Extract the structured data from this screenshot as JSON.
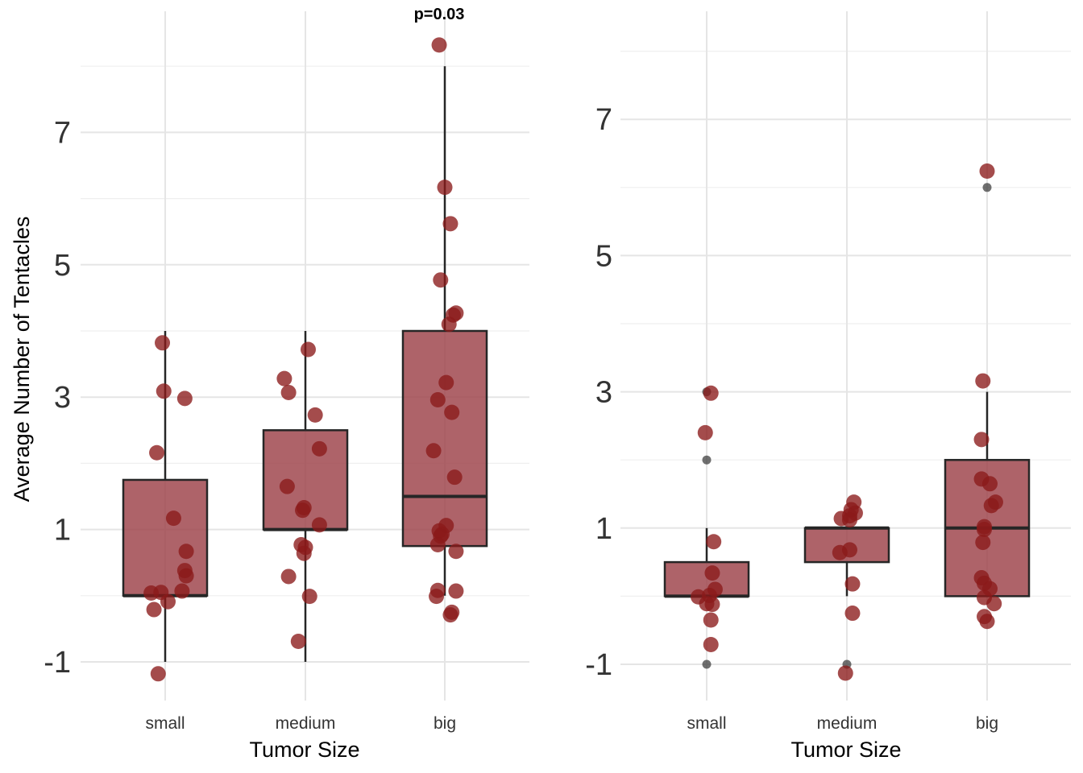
{
  "colors": {
    "box_fill": "#a0484f",
    "point_fill": "#8b1a1a",
    "outlier": "#333333",
    "grid": "#e5e5e5"
  },
  "chart_data": [
    {
      "type": "box",
      "title": "",
      "xlabel": "Tumor Size",
      "ylabel": "Average Number of Tentacles",
      "categories": [
        "small",
        "medium",
        "big"
      ],
      "ylim": [
        -1.6,
        8.8
      ],
      "yticks": [
        -1,
        1,
        3,
        5,
        7
      ],
      "yticklabels": [
        "-1",
        "1",
        "3",
        "5",
        "7"
      ],
      "annotation": "p=0.03",
      "grid": true,
      "boxes": [
        {
          "category": "small",
          "min": -1,
          "q1": 0,
          "median": 0,
          "q3": 1.75,
          "max": 4
        },
        {
          "category": "medium",
          "min": -1,
          "q1": 1,
          "median": 1,
          "q3": 2.5,
          "max": 4
        },
        {
          "category": "big",
          "min": 0,
          "q1": 0.75,
          "median": 1.5,
          "q3": 4,
          "max": 8
        }
      ],
      "outliers": [],
      "points": [
        {
          "category": "small",
          "jitter": -0.02,
          "y": 3.82
        },
        {
          "category": "small",
          "jitter": -0.01,
          "y": 3.09
        },
        {
          "category": "small",
          "jitter": 0.14,
          "y": 2.98
        },
        {
          "category": "small",
          "jitter": -0.06,
          "y": 2.16
        },
        {
          "category": "small",
          "jitter": 0.06,
          "y": 1.17
        },
        {
          "category": "small",
          "jitter": 0.15,
          "y": 0.67
        },
        {
          "category": "small",
          "jitter": 0.14,
          "y": 0.38
        },
        {
          "category": "small",
          "jitter": 0.15,
          "y": 0.3
        },
        {
          "category": "small",
          "jitter": -0.1,
          "y": 0.04
        },
        {
          "category": "small",
          "jitter": -0.03,
          "y": 0.05
        },
        {
          "category": "small",
          "jitter": 0.12,
          "y": 0.07
        },
        {
          "category": "small",
          "jitter": 0.02,
          "y": -0.09
        },
        {
          "category": "small",
          "jitter": -0.08,
          "y": -0.21
        },
        {
          "category": "small",
          "jitter": -0.05,
          "y": -1.18
        },
        {
          "category": "medium",
          "jitter": 0.02,
          "y": 3.72
        },
        {
          "category": "medium",
          "jitter": -0.15,
          "y": 3.28
        },
        {
          "category": "medium",
          "jitter": -0.12,
          "y": 3.07
        },
        {
          "category": "medium",
          "jitter": 0.07,
          "y": 2.73
        },
        {
          "category": "medium",
          "jitter": 0.1,
          "y": 2.22
        },
        {
          "category": "medium",
          "jitter": -0.13,
          "y": 1.65
        },
        {
          "category": "medium",
          "jitter": -0.01,
          "y": 1.33
        },
        {
          "category": "medium",
          "jitter": -0.02,
          "y": 1.29
        },
        {
          "category": "medium",
          "jitter": 0.1,
          "y": 1.07
        },
        {
          "category": "medium",
          "jitter": -0.03,
          "y": 0.77
        },
        {
          "category": "medium",
          "jitter": 0.0,
          "y": 0.73
        },
        {
          "category": "medium",
          "jitter": -0.01,
          "y": 0.64
        },
        {
          "category": "medium",
          "jitter": -0.12,
          "y": 0.29
        },
        {
          "category": "medium",
          "jitter": 0.03,
          "y": -0.01
        },
        {
          "category": "medium",
          "jitter": -0.05,
          "y": -0.69
        },
        {
          "category": "big",
          "jitter": -0.04,
          "y": 8.32
        },
        {
          "category": "big",
          "jitter": 0.0,
          "y": 6.17
        },
        {
          "category": "big",
          "jitter": 0.04,
          "y": 5.62
        },
        {
          "category": "big",
          "jitter": -0.03,
          "y": 4.77
        },
        {
          "category": "big",
          "jitter": 0.08,
          "y": 4.27
        },
        {
          "category": "big",
          "jitter": 0.06,
          "y": 4.24
        },
        {
          "category": "big",
          "jitter": 0.03,
          "y": 4.1
        },
        {
          "category": "big",
          "jitter": 0.01,
          "y": 3.22
        },
        {
          "category": "big",
          "jitter": -0.05,
          "y": 2.96
        },
        {
          "category": "big",
          "jitter": 0.05,
          "y": 2.77
        },
        {
          "category": "big",
          "jitter": -0.08,
          "y": 2.19
        },
        {
          "category": "big",
          "jitter": 0.07,
          "y": 1.79
        },
        {
          "category": "big",
          "jitter": 0.01,
          "y": 1.06
        },
        {
          "category": "big",
          "jitter": -0.04,
          "y": 0.98
        },
        {
          "category": "big",
          "jitter": -0.02,
          "y": 0.93
        },
        {
          "category": "big",
          "jitter": -0.03,
          "y": 0.9
        },
        {
          "category": "big",
          "jitter": -0.05,
          "y": 0.77
        },
        {
          "category": "big",
          "jitter": 0.08,
          "y": 0.67
        },
        {
          "category": "big",
          "jitter": -0.05,
          "y": 0.08
        },
        {
          "category": "big",
          "jitter": 0.08,
          "y": 0.07
        },
        {
          "category": "big",
          "jitter": -0.06,
          "y": -0.01
        },
        {
          "category": "big",
          "jitter": 0.05,
          "y": -0.25
        },
        {
          "category": "big",
          "jitter": 0.04,
          "y": -0.29
        }
      ]
    },
    {
      "type": "box",
      "title": "",
      "xlabel": "Tumor Size",
      "ylabel": "",
      "categories": [
        "small",
        "medium",
        "big"
      ],
      "ylim": [
        -1.6,
        8.8
      ],
      "yticks": [
        -1,
        1,
        3,
        5,
        7
      ],
      "yticklabels": [
        "-1",
        "1",
        "3",
        "5",
        "7"
      ],
      "annotation": "",
      "grid": true,
      "boxes": [
        {
          "category": "small",
          "min": 0,
          "q1": 0,
          "median": 0,
          "q3": 0.5,
          "max": 1
        },
        {
          "category": "medium",
          "min": 0,
          "q1": 0.5,
          "median": 1,
          "q3": 1,
          "max": 1
        },
        {
          "category": "big",
          "min": 0,
          "q1": 0,
          "median": 1,
          "q3": 2,
          "max": 3
        }
      ],
      "outliers": [
        {
          "category": "small",
          "y": 3
        },
        {
          "category": "small",
          "y": 2
        },
        {
          "category": "small",
          "y": -1
        },
        {
          "category": "medium",
          "y": -1
        },
        {
          "category": "big",
          "y": 6
        }
      ],
      "points": [
        {
          "category": "small",
          "jitter": 0.03,
          "y": 2.98
        },
        {
          "category": "small",
          "jitter": -0.01,
          "y": 2.4
        },
        {
          "category": "small",
          "jitter": 0.05,
          "y": 0.8
        },
        {
          "category": "small",
          "jitter": 0.04,
          "y": 0.34
        },
        {
          "category": "small",
          "jitter": 0.06,
          "y": 0.1
        },
        {
          "category": "small",
          "jitter": -0.06,
          "y": -0.01
        },
        {
          "category": "small",
          "jitter": 0.02,
          "y": 0.01
        },
        {
          "category": "small",
          "jitter": 0.0,
          "y": -0.11
        },
        {
          "category": "small",
          "jitter": 0.04,
          "y": -0.12
        },
        {
          "category": "small",
          "jitter": 0.03,
          "y": -0.35
        },
        {
          "category": "small",
          "jitter": 0.03,
          "y": -0.71
        },
        {
          "category": "medium",
          "jitter": 0.05,
          "y": 1.38
        },
        {
          "category": "medium",
          "jitter": 0.03,
          "y": 1.27
        },
        {
          "category": "medium",
          "jitter": 0.06,
          "y": 1.22
        },
        {
          "category": "medium",
          "jitter": 0.02,
          "y": 1.18
        },
        {
          "category": "medium",
          "jitter": -0.04,
          "y": 1.14
        },
        {
          "category": "medium",
          "jitter": 0.02,
          "y": 1.12
        },
        {
          "category": "medium",
          "jitter": 0.02,
          "y": 0.68
        },
        {
          "category": "medium",
          "jitter": -0.05,
          "y": 0.64
        },
        {
          "category": "medium",
          "jitter": 0.04,
          "y": 0.18
        },
        {
          "category": "medium",
          "jitter": 0.04,
          "y": -0.25
        },
        {
          "category": "medium",
          "jitter": -0.01,
          "y": -1.13
        },
        {
          "category": "big",
          "jitter": 0.0,
          "y": 6.24
        },
        {
          "category": "big",
          "jitter": -0.03,
          "y": 3.16
        },
        {
          "category": "big",
          "jitter": -0.04,
          "y": 2.3
        },
        {
          "category": "big",
          "jitter": -0.04,
          "y": 1.72
        },
        {
          "category": "big",
          "jitter": 0.02,
          "y": 1.65
        },
        {
          "category": "big",
          "jitter": 0.06,
          "y": 1.38
        },
        {
          "category": "big",
          "jitter": 0.03,
          "y": 1.33
        },
        {
          "category": "big",
          "jitter": -0.02,
          "y": 1.02
        },
        {
          "category": "big",
          "jitter": -0.02,
          "y": 0.98
        },
        {
          "category": "big",
          "jitter": -0.03,
          "y": 0.79
        },
        {
          "category": "big",
          "jitter": -0.04,
          "y": 0.27
        },
        {
          "category": "big",
          "jitter": -0.02,
          "y": 0.19
        },
        {
          "category": "big",
          "jitter": 0.02,
          "y": 0.11
        },
        {
          "category": "big",
          "jitter": -0.02,
          "y": -0.02
        },
        {
          "category": "big",
          "jitter": 0.05,
          "y": -0.11
        },
        {
          "category": "big",
          "jitter": -0.02,
          "y": -0.3
        },
        {
          "category": "big",
          "jitter": 0.0,
          "y": -0.37
        }
      ]
    }
  ]
}
